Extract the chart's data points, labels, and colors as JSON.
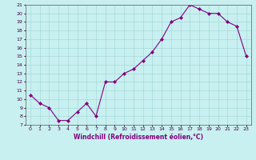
{
  "x": [
    0,
    1,
    2,
    3,
    4,
    5,
    6,
    7,
    8,
    9,
    10,
    11,
    12,
    13,
    14,
    15,
    16,
    17,
    18,
    19,
    20,
    21,
    22,
    23
  ],
  "y": [
    10.5,
    9.5,
    9.0,
    7.5,
    7.5,
    8.5,
    9.5,
    8.0,
    12.0,
    12.0,
    13.0,
    13.5,
    14.5,
    15.5,
    17.0,
    19.0,
    19.5,
    21.0,
    20.5,
    20.0,
    20.0,
    19.0,
    18.5,
    15.0
  ],
  "xlabel": "Windchill (Refroidissement éolien,°C)",
  "ylim": [
    7,
    21
  ],
  "yticks": [
    7,
    8,
    9,
    10,
    11,
    12,
    13,
    14,
    15,
    16,
    17,
    18,
    19,
    20,
    21
  ],
  "xticks": [
    0,
    1,
    2,
    3,
    4,
    5,
    6,
    7,
    8,
    9,
    10,
    11,
    12,
    13,
    14,
    15,
    16,
    17,
    18,
    19,
    20,
    21,
    22,
    23
  ],
  "line_color": "#800080",
  "marker_color": "#800080",
  "bg_color": "#c8f0f0",
  "grid_color": "#a8d8d8"
}
